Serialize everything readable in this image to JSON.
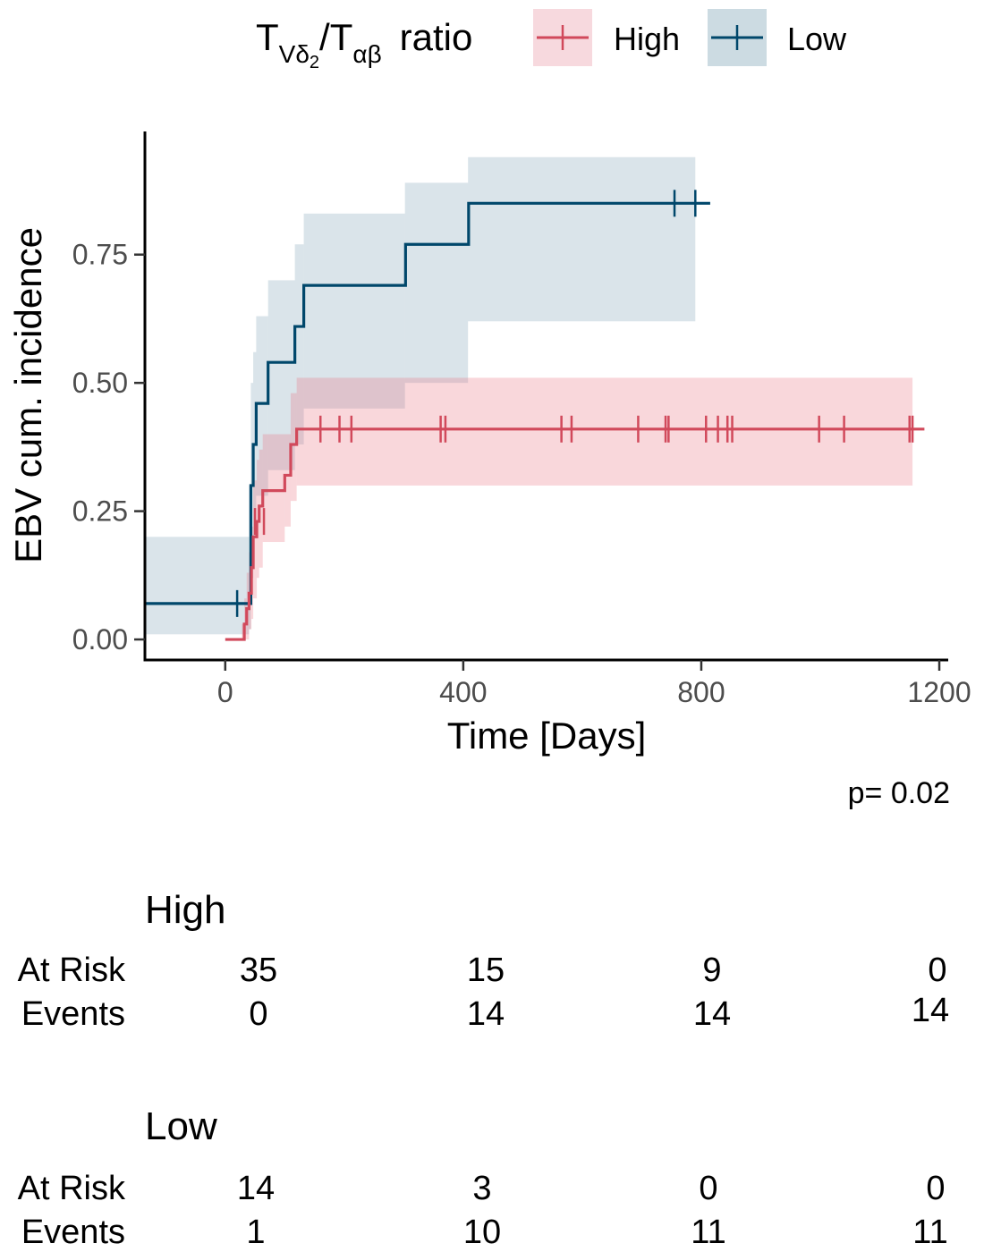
{
  "legend": {
    "title_main": "T",
    "title_sub1": "Vδ",
    "title_sub1_index": "2",
    "title_slash": "/T",
    "title_sub2": "αβ",
    "title_tail": "ratio",
    "entries": [
      "High",
      "Low"
    ]
  },
  "pvalue": "p= 0.02",
  "risk_table": {
    "row_labels": [
      "At Risk",
      "Events"
    ],
    "groups": [
      {
        "name": "High",
        "at_risk": [
          "35",
          "15",
          "9",
          "0"
        ],
        "events": [
          "0",
          "14",
          "14",
          "14"
        ]
      },
      {
        "name": "Low",
        "at_risk": [
          "14",
          "3",
          "0",
          "0"
        ],
        "events": [
          "1",
          "10",
          "11",
          "11"
        ]
      }
    ],
    "times": [
      0,
      400,
      800,
      1200
    ]
  },
  "chart_data": {
    "type": "line",
    "subtype": "step",
    "xlabel": "Time [Days]",
    "ylabel": "EBV cum. incidence",
    "xlim": [
      -135,
      1215
    ],
    "ylim": [
      -0.04,
      0.99
    ],
    "xticks": [
      0,
      400,
      800,
      1200
    ],
    "xtick_labels": [
      "0",
      "400",
      "800",
      "1200"
    ],
    "yticks": [
      0,
      0.25,
      0.5,
      0.75
    ],
    "ytick_labels": [
      "0.00",
      "0.25",
      "0.50",
      "0.75"
    ],
    "legend_position": "top",
    "series": [
      {
        "name": "High",
        "color": "#d1495b",
        "steps": [
          [
            0,
            0
          ],
          [
            28,
            0
          ],
          [
            32,
            0.03
          ],
          [
            36,
            0.06
          ],
          [
            40,
            0.09
          ],
          [
            44,
            0.14
          ],
          [
            47,
            0.2
          ],
          [
            53,
            0.23
          ],
          [
            57,
            0.26
          ],
          [
            63,
            0.29
          ],
          [
            100,
            0.32
          ],
          [
            110,
            0.38
          ],
          [
            120,
            0.41
          ],
          [
            1175,
            0.41
          ]
        ],
        "ci_boxes": [
          [
            28,
            32,
            0,
            0.03
          ],
          [
            32,
            36,
            0,
            0.08
          ],
          [
            36,
            40,
            0,
            0.13
          ],
          [
            40,
            44,
            0.02,
            0.17
          ],
          [
            44,
            47,
            0.04,
            0.22
          ],
          [
            47,
            53,
            0.08,
            0.31
          ],
          [
            53,
            57,
            0.12,
            0.35
          ],
          [
            57,
            63,
            0.14,
            0.37
          ],
          [
            63,
            100,
            0.19,
            0.4
          ],
          [
            100,
            110,
            0.22,
            0.4
          ],
          [
            110,
            120,
            0.27,
            0.48
          ],
          [
            120,
            1155,
            0.3,
            0.51
          ]
        ],
        "censor_times": [
          50,
          65,
          160,
          192,
          212,
          362,
          370,
          565,
          582,
          694,
          740,
          745,
          808,
          828,
          844,
          852,
          998,
          1040,
          1150,
          1155
        ],
        "censor_values": [
          0.23,
          0.23,
          0.41,
          0.41,
          0.41,
          0.41,
          0.41,
          0.41,
          0.41,
          0.41,
          0.41,
          0.41,
          0.41,
          0.41,
          0.41,
          0.41,
          0.41,
          0.41,
          0.41,
          0.41
        ]
      },
      {
        "name": "Low",
        "color": "#00476b",
        "steps": [
          [
            -135,
            0.07
          ],
          [
            40,
            0.07
          ],
          [
            43,
            0.3
          ],
          [
            47,
            0.38
          ],
          [
            52,
            0.46
          ],
          [
            72,
            0.54
          ],
          [
            117,
            0.61
          ],
          [
            132,
            0.69
          ],
          [
            302,
            0.69
          ],
          [
            303,
            0.77
          ],
          [
            408,
            0.77
          ],
          [
            409,
            0.85
          ],
          [
            815,
            0.85
          ]
        ],
        "ci_boxes": [
          [
            -135,
            40,
            0.01,
            0.2
          ],
          [
            40,
            43,
            0.02,
            0.3
          ],
          [
            43,
            47,
            0.12,
            0.5
          ],
          [
            47,
            52,
            0.2,
            0.56
          ],
          [
            52,
            72,
            0.28,
            0.63
          ],
          [
            72,
            117,
            0.33,
            0.7
          ],
          [
            117,
            132,
            0.38,
            0.77
          ],
          [
            132,
            302,
            0.45,
            0.83
          ],
          [
            302,
            408,
            0.5,
            0.89
          ],
          [
            408,
            790,
            0.62,
            0.94
          ]
        ],
        "censor_times": [
          20,
          755,
          790
        ],
        "censor_values": [
          0.07,
          0.85,
          0.85
        ]
      }
    ]
  }
}
